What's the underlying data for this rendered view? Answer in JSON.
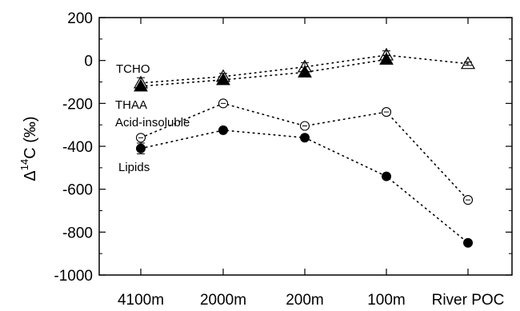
{
  "chart_data": {
    "type": "scatter",
    "categories": [
      "4100m",
      "2000m",
      "200m",
      "100m",
      "River POC"
    ],
    "ylabel": "Δ14C (‰)",
    "ylabel_parts": {
      "symbol": "Δ",
      "superscript": "14",
      "rest": "C (‰)"
    },
    "ylim": [
      -1000,
      200
    ],
    "yticks": [
      200,
      0,
      -200,
      -400,
      -600,
      -800,
      -1000
    ],
    "yticks_labels": [
      "200",
      "0",
      "-200",
      "-400",
      "-600",
      "-800",
      "-1000"
    ],
    "grid": false,
    "connector": "dotted",
    "series": [
      {
        "name": "TCHO",
        "marker": "open-triangle",
        "color": "#000000",
        "values": [
          -105,
          -75,
          -30,
          25,
          -15
        ],
        "errors": [
          25,
          15,
          20,
          20,
          8
        ]
      },
      {
        "name": "THAA",
        "marker": "filled-triangle",
        "color": "#000000",
        "values": [
          -120,
          -90,
          -55,
          5,
          null
        ],
        "errors": [
          0,
          0,
          0,
          0,
          0
        ]
      },
      {
        "name": "Acid-insoluble",
        "marker": "open-circle-errorbar",
        "color": "#000000",
        "values": [
          -360,
          -200,
          -305,
          -240,
          -650
        ],
        "errors": [
          12,
          8,
          10,
          10,
          8
        ]
      },
      {
        "name": "Lipids",
        "marker": "filled-circle",
        "color": "#000000",
        "values": [
          -410,
          -325,
          -360,
          -540,
          -850
        ],
        "errors": [
          25,
          0,
          0,
          0,
          0
        ]
      }
    ]
  }
}
